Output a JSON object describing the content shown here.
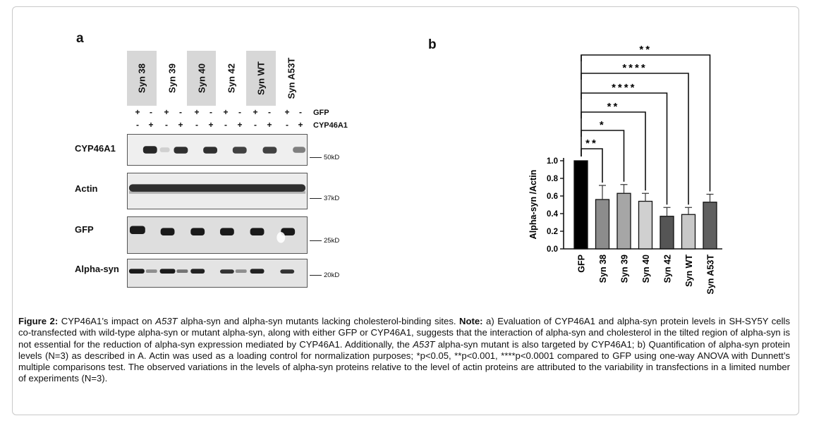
{
  "panel_a": {
    "letter": "a",
    "lanes": [
      "Syn 38",
      "Syn 39",
      "Syn 40",
      "Syn 42",
      "Syn WT",
      "Syn A53T"
    ],
    "gfp_row": [
      "+",
      "-",
      "+",
      "-",
      "+",
      "-",
      "+",
      "-",
      "+",
      "-",
      "+",
      "-"
    ],
    "cyp_row": [
      "-",
      "+",
      "-",
      "+",
      "-",
      "+",
      "-",
      "+",
      "-",
      "+",
      "-",
      "+"
    ],
    "gfp_label": "GFP",
    "cyp_label": "CYP46A1",
    "blots": [
      {
        "label": "CYP46A1",
        "marker": "50kD"
      },
      {
        "label": "Actin",
        "marker": "37kD"
      },
      {
        "label": "GFP",
        "marker": "25kD"
      },
      {
        "label": "Alpha-syn",
        "marker": "20kD"
      }
    ]
  },
  "panel_b": {
    "letter": "b"
  },
  "chart_data": {
    "type": "bar",
    "categories": [
      "GFP",
      "Syn 38",
      "Syn 39",
      "Syn 40",
      "Syn 42",
      "Syn WT",
      "Syn A53T"
    ],
    "values": [
      1.0,
      0.56,
      0.63,
      0.54,
      0.37,
      0.39,
      0.53
    ],
    "errors": [
      0.0,
      0.16,
      0.1,
      0.09,
      0.1,
      0.08,
      0.09
    ],
    "bar_colors": [
      "#000000",
      "#8c8c8c",
      "#a6a6a6",
      "#d0d0d0",
      "#555555",
      "#c8c8c8",
      "#5f5f5f"
    ],
    "ylabel": "Alpha-syn /Actin",
    "ylim": [
      0,
      1.0
    ],
    "yticks": [
      "0.0",
      "0.2",
      "0.4",
      "0.6",
      "0.8",
      "1.0"
    ],
    "significance": [
      {
        "compare": "Syn 38",
        "label": "**"
      },
      {
        "compare": "Syn 39",
        "label": "*"
      },
      {
        "compare": "Syn 40",
        "label": "**"
      },
      {
        "compare": "Syn 42",
        "label": "****"
      },
      {
        "compare": "Syn WT",
        "label": "****"
      },
      {
        "compare": "Syn A53T",
        "label": "**"
      }
    ]
  },
  "caption": {
    "label": "Figure 2:",
    "p1": " CYP46A1’s impact on ",
    "i1": "A53T",
    "p2": " alpha-syn and alpha-syn mutants lacking cholesterol-binding sites. ",
    "note": "Note:",
    "p3": " a) Evaluation of CYP46A1 and alpha-syn protein levels in SH-SY5Y cells co-transfected with wild-type alpha-syn or mutant alpha-syn, along with either GFP or CYP46A1, suggests that the interaction of alpha-syn and cholesterol in the tilted region of alpha-syn is not essential for the reduction of alpha-syn expression mediated by CYP46A1. Additionally, the ",
    "i2": "A53T",
    "p4": " alpha-syn mutant is also targeted by CYP46A1; b) Quantification of alpha-syn protein levels (N=3) as described in A. Actin was used as a loading control for normalization purposes; *p<0.05, **p<0.001, ****p<0.0001 compared to GFP using one-way ANOVA with Dunnett’s multiple comparisons test. The observed variations in the levels of alpha-syn proteins relative to the level of actin proteins are attributed to the variability in transfections in a limited number of experiments (N=3)."
  }
}
